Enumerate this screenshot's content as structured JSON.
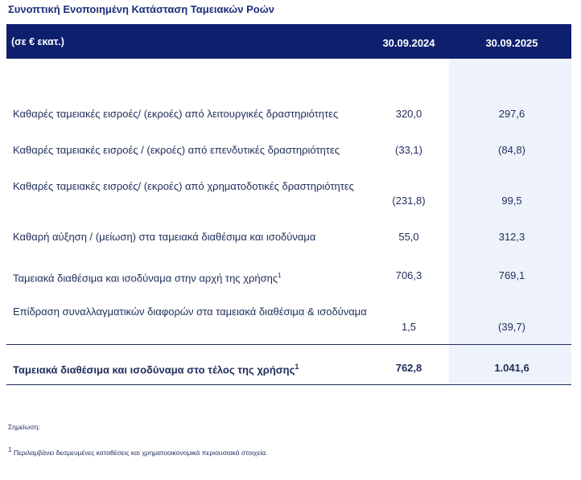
{
  "header": {
    "title": "Συνοπτική Ενοποιημένη Κατάσταση Ταμειακών Ροών"
  },
  "table": {
    "columns": [
      "(σε € εκατ.)",
      "30.09.2024",
      "30.09.2025"
    ],
    "rows": [
      {
        "label": "Καθαρές ταμειακές εισροές/ (εκροές) από λειτουργικές δραστηριότητες",
        "values": [
          "320,0",
          "297,6"
        ]
      },
      {
        "label": "Καθαρές ταμειακές εισροές / (εκροές) από επενδυτικές δραστηριότητες",
        "values": [
          "(33,1)",
          "(84,8)"
        ]
      },
      {
        "label": "Καθαρές ταμειακές εισροές/ (εκροές) από χρηματοδοτικές δραστηριότητες",
        "values": [
          "(231,8)",
          "99,5"
        ]
      },
      {
        "label": "Καθαρή αύξηση / (μείωση) στα ταμειακά διαθέσιμα και ισοδύναμα",
        "values": [
          "55,0",
          "312,3"
        ]
      },
      {
        "label": "Ταμειακά διαθέσιμα και ισοδύναμα στην αρχή της χρήσης",
        "sup": "1",
        "values": [
          "706,3",
          "769,1"
        ]
      },
      {
        "label": "Επίδραση συναλλαγματικών διαφορών στα ταμειακά διαθέσιμα & ισοδύναμα",
        "values": [
          "1,5",
          "(39,7)"
        ]
      }
    ],
    "total": {
      "label": "Ταμειακά διαθέσιμα και ισοδύναμα στο τέλος της χρήσης",
      "sup": "1",
      "values": [
        "762,8",
        "1.041,6"
      ]
    }
  },
  "notes": {
    "heading": "Σημείωση:",
    "footnote_mark": "1",
    "footnote": "Περιλαμβάνει δεσμευμένες καταθέσεις και χρηματοοικονομικά περιουσιακά στοιχεία."
  }
}
